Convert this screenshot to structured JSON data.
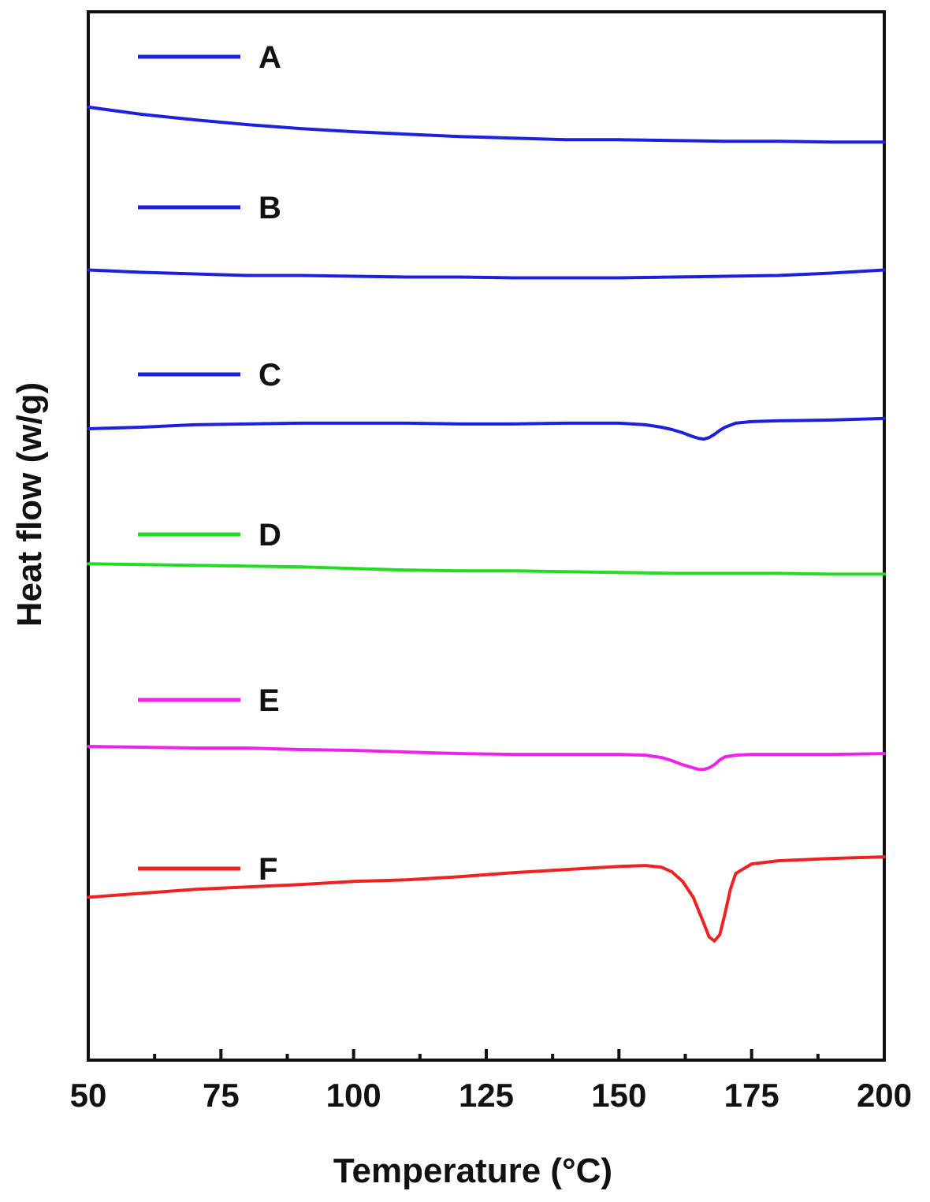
{
  "chart_data": {
    "type": "line",
    "title": "",
    "xlabel": "Temperature (°C)",
    "ylabel": "Heat flow (w/g)",
    "xlim": [
      50,
      200
    ],
    "xticks": [
      50,
      75,
      100,
      125,
      150,
      175,
      200
    ],
    "xtick_labels": [
      "50",
      "75",
      "100",
      "125",
      "150",
      "175",
      "200"
    ],
    "minor_xticks": [
      62.5,
      87.5,
      112.5,
      137.5,
      162.5,
      187.5
    ],
    "yticks": [],
    "grid": false,
    "legend_placement": "stacked left, above each curve",
    "ylim": [
      -1.0,
      12.2
    ],
    "series": [
      {
        "name": "A",
        "color": "#1f1fe0",
        "x": [
          50,
          60,
          70,
          80,
          90,
          100,
          110,
          120,
          130,
          140,
          150,
          160,
          170,
          180,
          190,
          200
        ],
        "y": [
          11.0,
          10.91,
          10.84,
          10.78,
          10.73,
          10.69,
          10.66,
          10.63,
          10.61,
          10.59,
          10.59,
          10.58,
          10.57,
          10.57,
          10.56,
          10.56
        ]
      },
      {
        "name": "B",
        "color": "#1f1fe0",
        "x": [
          50,
          60,
          70,
          80,
          90,
          100,
          110,
          120,
          130,
          140,
          150,
          160,
          170,
          180,
          190,
          200
        ],
        "y": [
          8.95,
          8.92,
          8.9,
          8.88,
          8.88,
          8.87,
          8.86,
          8.86,
          8.85,
          8.85,
          8.85,
          8.86,
          8.87,
          8.88,
          8.91,
          8.95
        ]
      },
      {
        "name": "C",
        "color": "#1f1fe0",
        "x": [
          50,
          60,
          70,
          80,
          90,
          100,
          110,
          120,
          130,
          140,
          150,
          155,
          158,
          160,
          162,
          164,
          165,
          166,
          167,
          168,
          169,
          170,
          172,
          175,
          180,
          190,
          200
        ],
        "y": [
          6.95,
          6.97,
          7.0,
          7.01,
          7.02,
          7.02,
          7.02,
          7.01,
          7.01,
          7.02,
          7.02,
          7.0,
          6.97,
          6.94,
          6.9,
          6.85,
          6.83,
          6.82,
          6.84,
          6.88,
          6.93,
          6.97,
          7.02,
          7.04,
          7.05,
          7.06,
          7.08
        ]
      },
      {
        "name": "D",
        "color": "#22dd22",
        "x": [
          50,
          60,
          70,
          80,
          90,
          100,
          110,
          120,
          130,
          140,
          150,
          160,
          170,
          180,
          190,
          200
        ],
        "y": [
          5.25,
          5.24,
          5.23,
          5.22,
          5.21,
          5.19,
          5.17,
          5.16,
          5.16,
          5.15,
          5.14,
          5.13,
          5.13,
          5.13,
          5.12,
          5.12
        ]
      },
      {
        "name": "E",
        "color": "#ee22ee",
        "x": [
          50,
          60,
          70,
          80,
          90,
          100,
          110,
          120,
          130,
          140,
          150,
          155,
          158,
          160,
          162,
          164,
          165,
          166,
          167,
          168,
          169,
          170,
          172,
          175,
          180,
          190,
          200
        ],
        "y": [
          2.95,
          2.94,
          2.93,
          2.93,
          2.91,
          2.9,
          2.88,
          2.86,
          2.85,
          2.85,
          2.85,
          2.84,
          2.81,
          2.77,
          2.72,
          2.68,
          2.66,
          2.66,
          2.68,
          2.72,
          2.78,
          2.82,
          2.84,
          2.85,
          2.85,
          2.85,
          2.86
        ]
      },
      {
        "name": "F",
        "color": "#ee2222",
        "x": [
          50,
          60,
          70,
          80,
          90,
          100,
          110,
          120,
          130,
          140,
          150,
          155,
          158,
          160,
          162,
          164,
          166,
          167,
          168,
          169,
          170,
          171,
          172,
          175,
          180,
          190,
          200
        ],
        "y": [
          1.05,
          1.1,
          1.15,
          1.18,
          1.21,
          1.25,
          1.27,
          1.31,
          1.36,
          1.4,
          1.44,
          1.45,
          1.43,
          1.37,
          1.25,
          1.05,
          0.72,
          0.55,
          0.5,
          0.58,
          0.85,
          1.15,
          1.35,
          1.47,
          1.51,
          1.54,
          1.56
        ]
      }
    ]
  }
}
